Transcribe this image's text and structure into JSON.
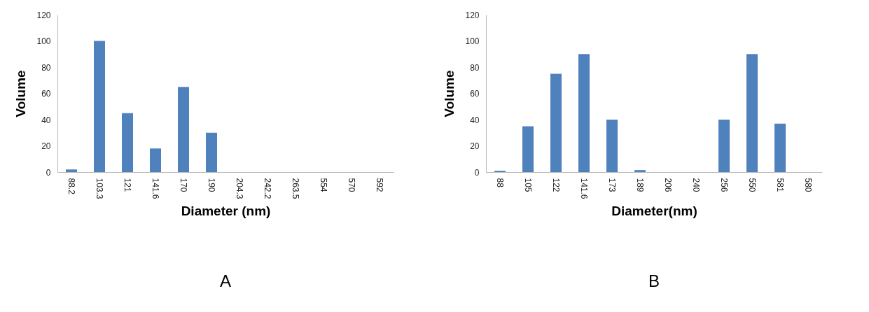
{
  "chart_data": [
    {
      "type": "bar",
      "title": "A",
      "xlabel": "Diameter (nm)",
      "ylabel": "Volume",
      "categories": [
        "88.2",
        "103.3",
        "121",
        "141.6",
        "170",
        "190",
        "204.3",
        "242.2",
        "263.5",
        "554",
        "570",
        "592"
      ],
      "values": [
        2,
        100,
        45,
        18,
        65,
        30,
        0,
        0,
        0,
        0,
        0,
        0
      ],
      "color": "#4f81bd",
      "ylim": [
        0,
        120
      ],
      "yticks": [
        0,
        20,
        40,
        60,
        80,
        100,
        120
      ],
      "grid": false
    },
    {
      "type": "bar",
      "title": "B",
      "xlabel": "Diameter(nm)",
      "ylabel": "Volume",
      "categories": [
        "88",
        "105",
        "122",
        "141.6",
        "173",
        "189",
        "206",
        "240",
        "256",
        "550",
        "581",
        "580"
      ],
      "values": [
        1,
        35,
        75,
        90,
        40,
        1.5,
        0,
        0,
        40,
        90,
        37,
        0
      ],
      "color": "#4f81bd",
      "ylim": [
        0,
        120
      ],
      "yticks": [
        0,
        20,
        40,
        60,
        80,
        100,
        120
      ],
      "grid": false
    }
  ]
}
